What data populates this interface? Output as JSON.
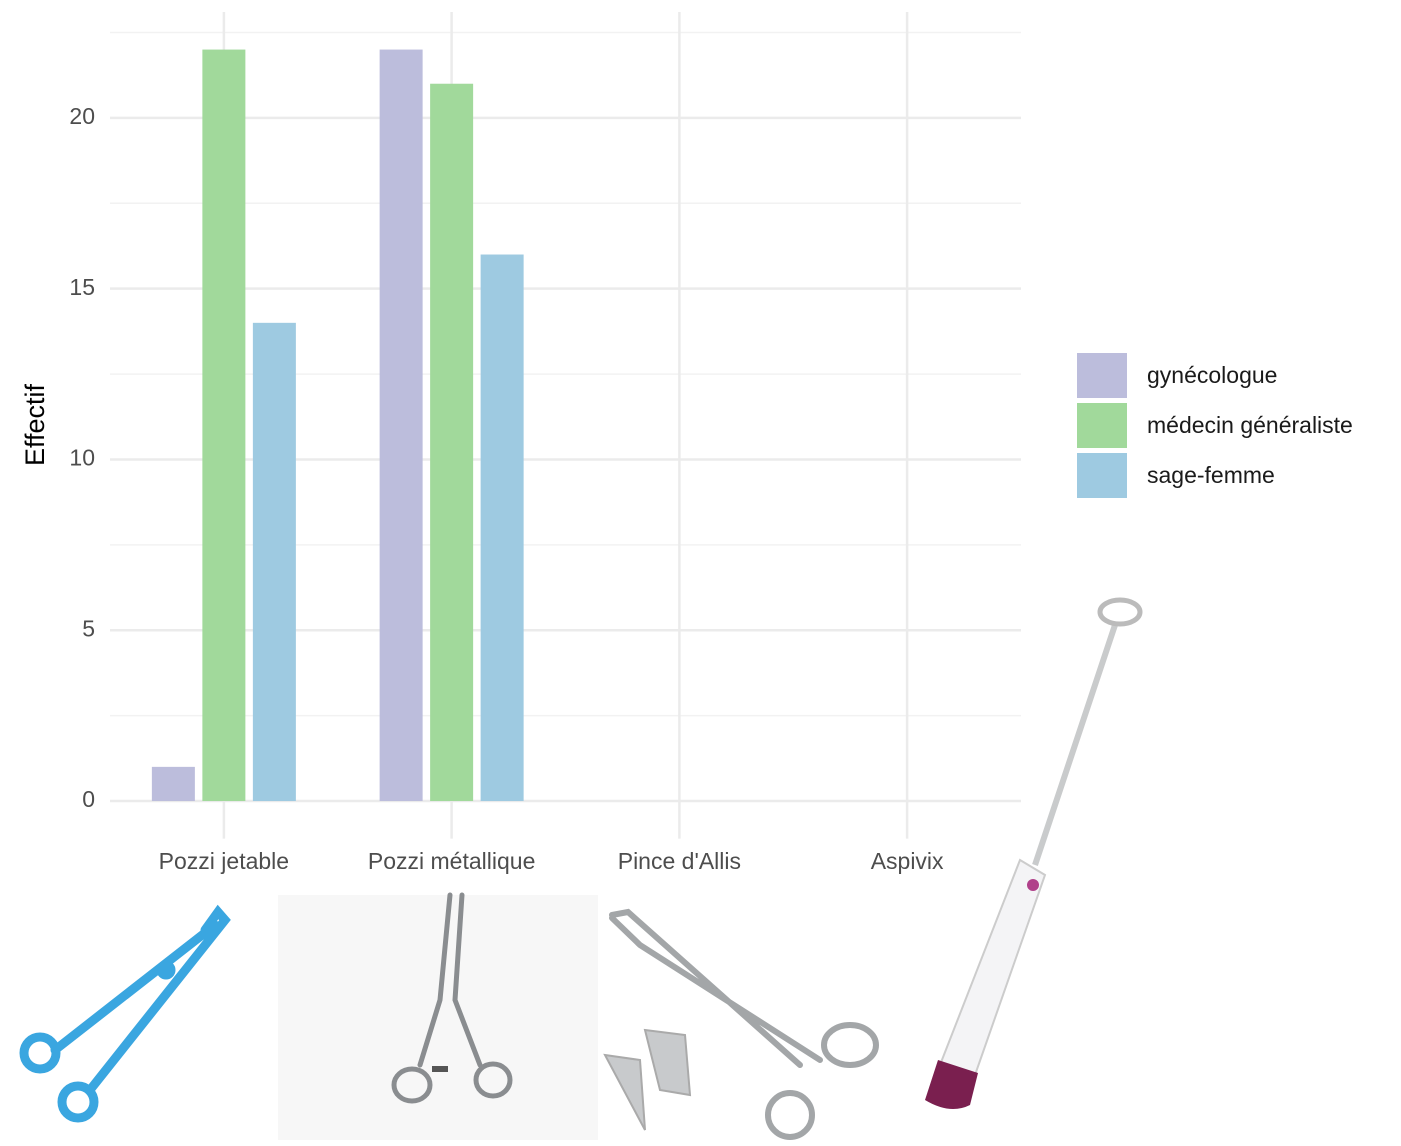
{
  "chart_data": {
    "type": "bar",
    "y_label": "Effectif",
    "categories": [
      "Pozzi jetable",
      "Pozzi métallique",
      "Pince d'Allis",
      "Aspivix"
    ],
    "series": [
      {
        "name": "gynécologue",
        "color": "#bcbddc",
        "values": [
          1,
          22,
          0,
          0
        ]
      },
      {
        "name": "médecin généraliste",
        "color": "#a1d99b",
        "values": [
          22,
          21,
          0,
          0
        ]
      },
      {
        "name": "sage-femme",
        "color": "#9ecae1",
        "values": [
          14,
          16,
          0,
          0
        ]
      }
    ],
    "ylim": [
      -1.1,
      23.1
    ],
    "yticks": [
      0,
      5,
      10,
      15,
      20
    ],
    "grid": true,
    "legend": "right"
  }
}
